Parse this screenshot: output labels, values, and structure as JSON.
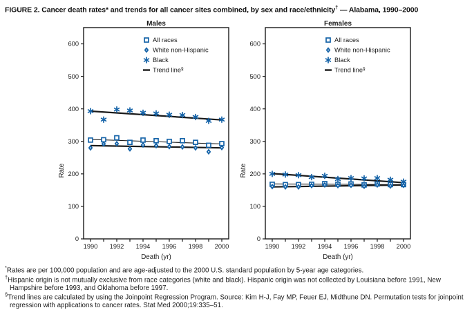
{
  "title": {
    "pre": "FIGURE 2. Cancer death rates* and trends for all cancer sites combined, by sex and race/ethnicity",
    "sup": "†",
    "post": " — Alabama, 1990–2000"
  },
  "colors": {
    "marker_blue": "#1563a8",
    "line_black": "#1a1a1a",
    "text": "#1a1a1a"
  },
  "legend": [
    {
      "label": "All races",
      "marker": "square"
    },
    {
      "label": "White non-Hispanic",
      "marker": "diamond"
    },
    {
      "label": "Black",
      "marker": "asterisk"
    },
    {
      "label": "Trend line",
      "sup": "§",
      "marker": "dash"
    }
  ],
  "chart_data": [
    {
      "type": "scatter",
      "title": "Males",
      "xlabel": "Death (yr)",
      "ylabel": "Rate",
      "x": [
        1990,
        1991,
        1992,
        1993,
        1994,
        1995,
        1996,
        1997,
        1998,
        1999,
        2000
      ],
      "xticks_labeled": [
        1990,
        1992,
        1994,
        1996,
        1998,
        2000
      ],
      "ylim": [
        0,
        650
      ],
      "yticks": [
        0,
        100,
        200,
        300,
        400,
        500,
        600
      ],
      "grid": false,
      "legend_position": "upper-center-right",
      "series": [
        {
          "name": "All races",
          "marker": "square",
          "values": [
            304,
            305,
            311,
            297,
            304,
            302,
            300,
            302,
            297,
            288,
            293
          ]
        },
        {
          "name": "White non-Hispanic",
          "marker": "diamond",
          "values": [
            280,
            292,
            293,
            277,
            289,
            287,
            284,
            283,
            280,
            268,
            281
          ]
        },
        {
          "name": "Black",
          "marker": "asterisk",
          "values": [
            393,
            367,
            398,
            395,
            388,
            386,
            382,
            381,
            375,
            363,
            367
          ]
        }
      ],
      "trend_lines": [
        {
          "name": "All races trend",
          "start": 306,
          "end": 292,
          "weight": "thin"
        },
        {
          "name": "White non-Hispanic trend",
          "start": 287,
          "end": 280,
          "weight": "thick"
        },
        {
          "name": "Black trend",
          "start": 393,
          "end": 366,
          "weight": "thick"
        }
      ]
    },
    {
      "type": "scatter",
      "title": "Females",
      "xlabel": "Death (yr)",
      "ylabel": "Rate",
      "x": [
        1990,
        1991,
        1992,
        1993,
        1994,
        1995,
        1996,
        1997,
        1998,
        1999,
        2000
      ],
      "xticks_labeled": [
        1990,
        1992,
        1994,
        1996,
        1998,
        2000
      ],
      "ylim": [
        0,
        650
      ],
      "yticks": [
        0,
        100,
        200,
        300,
        400,
        500,
        600
      ],
      "grid": false,
      "legend_position": "upper-center-right",
      "series": [
        {
          "name": "All races",
          "marker": "square",
          "values": [
            168,
            167,
            167,
            168,
            170,
            168,
            169,
            166,
            169,
            167,
            167
          ]
        },
        {
          "name": "White non-Hispanic",
          "marker": "diamond",
          "values": [
            161,
            160,
            160,
            164,
            166,
            164,
            165,
            162,
            166,
            163,
            165
          ]
        },
        {
          "name": "Black",
          "marker": "asterisk",
          "values": [
            200,
            198,
            196,
            190,
            194,
            184,
            187,
            186,
            187,
            182,
            176
          ]
        }
      ],
      "trend_lines": [
        {
          "name": "All races trend",
          "start": 169,
          "end": 167,
          "weight": "thin"
        },
        {
          "name": "White non-Hispanic trend",
          "start": 160,
          "end": 166,
          "weight": "thick"
        },
        {
          "name": "Black trend",
          "start": 201,
          "end": 173,
          "weight": "thick"
        }
      ]
    }
  ],
  "footnotes": [
    {
      "marker": "*",
      "text": "Rates are per 100,000 population and are age-adjusted to the 2000 U.S. standard population by 5-year age categories."
    },
    {
      "marker": "†",
      "text": "Hispanic origin is not mutually exclusive from race categories (white and black). Hispanic origin was not collected by Louisiana before 1991, New Hampshire before 1993, and Oklahoma before 1997."
    },
    {
      "marker": "§",
      "text": "Trend lines are calculated by using the Joinpoint Regression Program. Source: Kim H-J, Fay MP, Feuer EJ, Midthune DN. Permutation tests for joinpoint regression with applications to cancer rates. Stat Med 2000;19:335–51."
    }
  ]
}
